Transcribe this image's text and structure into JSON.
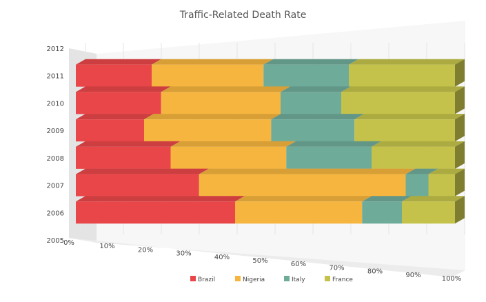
{
  "chart_data": {
    "type": "bar",
    "stacked": "100%",
    "view": "3d",
    "title": "Traffic-Related Death Rate",
    "categories": [
      "2006",
      "2007",
      "2008",
      "2009",
      "2010",
      "2011"
    ],
    "y_tick_labels": [
      "2005",
      "2006",
      "2007",
      "2008",
      "2009",
      "2010",
      "2011",
      "2012"
    ],
    "x_tick_labels": [
      "0%",
      "10%",
      "20%",
      "30%",
      "40%",
      "50%",
      "60%",
      "70%",
      "80%",
      "90%",
      "100%"
    ],
    "xlim": [
      0,
      100
    ],
    "grid": true,
    "legend_position": "bottom",
    "series": [
      {
        "name": "Brazil",
        "color": "#e94649",
        "values": [
          42.0,
          32.5,
          25.0,
          18.0,
          22.5,
          20.0
        ]
      },
      {
        "name": "Nigeria",
        "color": "#f6b53f",
        "values": [
          33.5,
          54.5,
          30.5,
          33.5,
          31.5,
          29.5
        ]
      },
      {
        "name": "Italy",
        "color": "#6fab99",
        "values": [
          10.5,
          6.0,
          22.5,
          22.0,
          16.0,
          22.5
        ]
      },
      {
        "name": "France",
        "color": "#c4c24a",
        "values": [
          14.0,
          7.0,
          22.0,
          26.5,
          30.0,
          28.0
        ]
      }
    ]
  }
}
